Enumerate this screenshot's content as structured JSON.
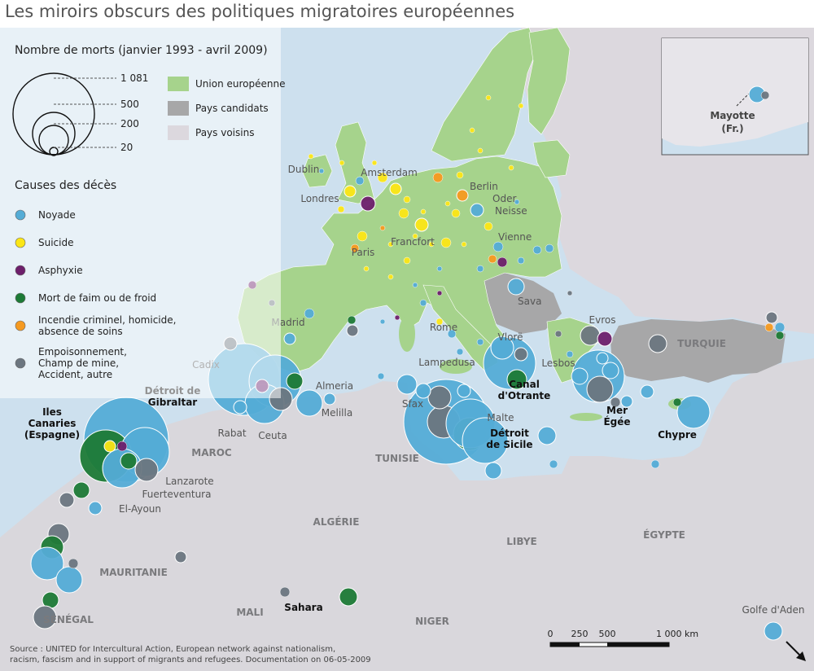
{
  "title": "Les miroirs obscurs des politiques migratoires européennes",
  "colors": {
    "sea": "#cde0ee",
    "land_other": "#d9d7dc",
    "eu": "#a6d38c",
    "candidate": "#a7a7a8",
    "neighbor": "#dcd8de",
    "noyade": "#54acd6",
    "suicide": "#fbe616",
    "asphyxie": "#6d1f6b",
    "faim_froid": "#1d7a36",
    "incendie": "#f59a21",
    "empoisonnement": "#6c7680"
  },
  "legend": {
    "size_title": "Nombre de morts (janvier 1993 - avril 2009)",
    "size_values": [
      "1 081",
      "500",
      "200",
      "20"
    ],
    "zones": [
      {
        "key": "eu",
        "label": "Union européenne"
      },
      {
        "key": "candidate",
        "label": "Pays candidats"
      },
      {
        "key": "neighbor",
        "label": "Pays voisins"
      }
    ],
    "causes_title": "Causes des décès",
    "causes": [
      {
        "key": "noyade",
        "lines": [
          "Noyade"
        ]
      },
      {
        "key": "suicide",
        "lines": [
          "Suicide"
        ]
      },
      {
        "key": "asphyxie",
        "lines": [
          "Asphyxie"
        ]
      },
      {
        "key": "faim_froid",
        "lines": [
          "Mort de faim ou de froid"
        ]
      },
      {
        "key": "incendie",
        "lines": [
          "Incendie criminel, homicide,",
          "absence de soins"
        ]
      },
      {
        "key": "empoisonnement",
        "lines": [
          "Empoisonnement,",
          "Champ de mine,",
          "Accident, autre"
        ]
      }
    ]
  },
  "inset_label": [
    "Mayotte",
    "(Fr.)"
  ],
  "city_labels": [
    "Dublin",
    "Amsterdam",
    "Berlin",
    "Oder",
    "Londres",
    "Neisse",
    "Paris",
    "Francfort",
    "Vienne",
    "Sava",
    "Madrid",
    "Rome",
    "Vlorë",
    "Evros",
    "Cadix",
    "Lampedusa",
    "Almeria",
    "Lesbos",
    "Sfax",
    "Melilla",
    "Malte",
    "Rabat",
    "Ceuta",
    "Lanzarote",
    "Fuerteventura",
    "El-Ayoun",
    "Golfe d'Aden"
  ],
  "country_labels": [
    "TURQUIE",
    "MAROC",
    "TUNISIE",
    "ALGÉRIE",
    "LIBYE",
    "ÉGYPTE",
    "MAURITANIE",
    "MALI",
    "NIGER",
    "SÉNÉGAL"
  ],
  "hotspot_labels": [
    [
      "Détroit de",
      "Gibraltar"
    ],
    [
      "Iles",
      "Canaries",
      "(Espagne)"
    ],
    [
      "Canal",
      "d'Otrante"
    ],
    [
      "Mer",
      "Égée"
    ],
    [
      "Chypre"
    ],
    [
      "Détroit",
      "de Sicile"
    ],
    [
      "Sahara"
    ]
  ],
  "scale": {
    "ticks": [
      "0",
      "250",
      "500",
      "1 000 km"
    ]
  },
  "source_lines": [
    "Source : UNITED for Intercultural Action, European network against nationalism,",
    "racism, fascism and in support of migrants and refugees. Documentation on 06-05-2009"
  ]
}
